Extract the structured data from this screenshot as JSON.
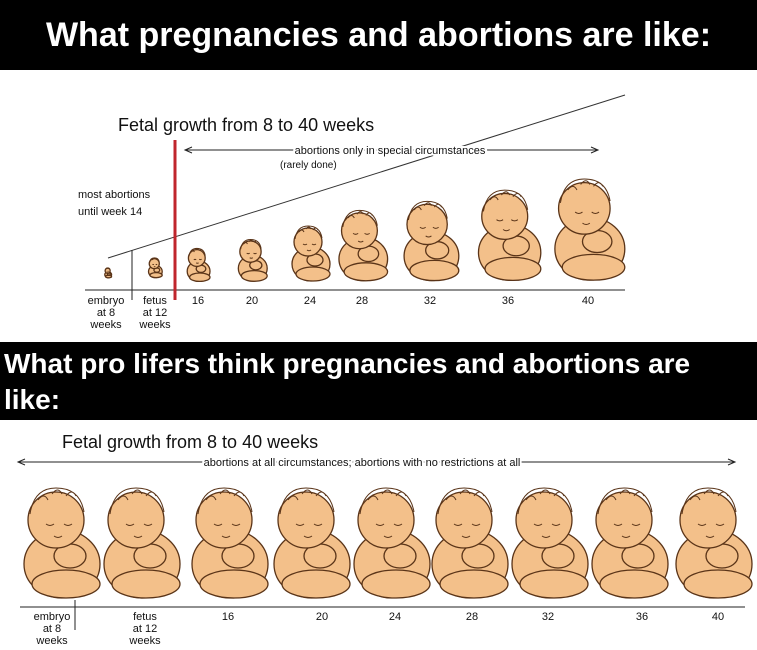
{
  "top_banner": "What pregnancies and abortions are like:",
  "reality_panel": {
    "title": "Fetal growth from 8 to 40 weeks",
    "range_label": "abortions only in special circumstances",
    "range_note": "(rarely done)",
    "side_note": [
      "most abortions",
      "until week 14"
    ],
    "axis_labels": [
      [
        "embryo",
        "at 8",
        "weeks"
      ],
      [
        "fetus",
        "at 12",
        "weeks"
      ],
      [
        "16"
      ],
      [
        "20"
      ],
      [
        "24"
      ],
      [
        "28"
      ],
      [
        "32"
      ],
      [
        "36"
      ],
      [
        "40"
      ]
    ]
  },
  "middle_banner": "What pro lifers think pregnancies and abortions are like:",
  "perception_panel": {
    "title": "Fetal growth from 8 to 40 weeks",
    "range_label": "abortions at all circumstances; abortions with no restrictions at all",
    "axis_labels": [
      [
        "embryo",
        "at 8",
        "weeks"
      ],
      [
        "fetus",
        "at 12",
        "weeks"
      ],
      [
        "16"
      ],
      [
        "20"
      ],
      [
        "24"
      ],
      [
        "28"
      ],
      [
        "32"
      ],
      [
        "36"
      ],
      [
        "40"
      ]
    ]
  }
}
